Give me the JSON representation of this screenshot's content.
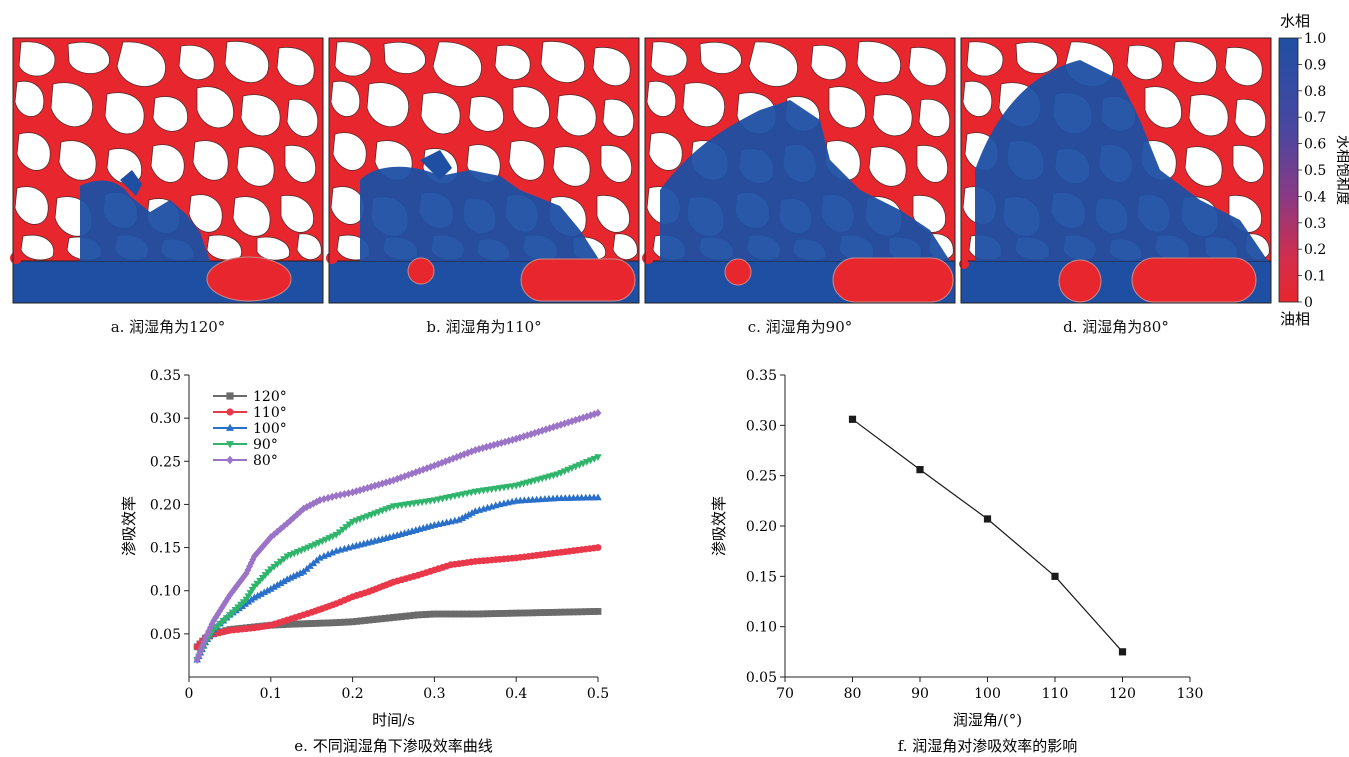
{
  "panels": [
    {
      "id": "a",
      "caption": "a. 润湿角为120°"
    },
    {
      "id": "b",
      "caption": "b. 润湿角为110°"
    },
    {
      "id": "c",
      "caption": "c. 润湿角为90°"
    },
    {
      "id": "d",
      "caption": "d. 润湿角为80°"
    }
  ],
  "colorbar": {
    "top_label": "水相",
    "bottom_label": "油相",
    "title": "水相饱和度",
    "ticks": [
      "1.0",
      "0.9",
      "0.8",
      "0.7",
      "0.6",
      "0.5",
      "0.4",
      "0.3",
      "0.2",
      "0.1",
      "0"
    ],
    "colors": {
      "water": "#1f4fa3",
      "oil": "#e8262e",
      "mid": "#7d3a8a"
    }
  },
  "chart_data": [
    {
      "type": "line",
      "caption": "e. 不同润湿角下渗吸效率曲线",
      "xlabel": "时间/s",
      "ylabel": "渗吸效率",
      "xlim": [
        0,
        0.5
      ],
      "ylim": [
        0,
        0.35
      ],
      "xticks": [
        "0",
        "0.1",
        "0.2",
        "0.3",
        "0.4",
        "0.5"
      ],
      "yticks": [
        "0.05",
        "0.10",
        "0.15",
        "0.20",
        "0.25",
        "0.30",
        "0.35"
      ],
      "legend_position": "top-left",
      "series": [
        {
          "name": "120°",
          "color": "#6b6b6b",
          "marker": "square",
          "x": [
            0.01,
            0.02,
            0.03,
            0.05,
            0.08,
            0.1,
            0.12,
            0.15,
            0.18,
            0.2,
            0.22,
            0.25,
            0.28,
            0.3,
            0.35,
            0.4,
            0.45,
            0.5
          ],
          "y": [
            0.035,
            0.045,
            0.05,
            0.055,
            0.058,
            0.06,
            0.061,
            0.062,
            0.063,
            0.064,
            0.066,
            0.069,
            0.072,
            0.073,
            0.073,
            0.074,
            0.075,
            0.076
          ]
        },
        {
          "name": "110°",
          "color": "#e8384a",
          "marker": "circle",
          "x": [
            0.01,
            0.02,
            0.03,
            0.05,
            0.08,
            0.1,
            0.12,
            0.15,
            0.18,
            0.2,
            0.22,
            0.25,
            0.28,
            0.3,
            0.32,
            0.35,
            0.4,
            0.45,
            0.5
          ],
          "y": [
            0.035,
            0.045,
            0.05,
            0.054,
            0.057,
            0.06,
            0.066,
            0.075,
            0.085,
            0.093,
            0.099,
            0.11,
            0.118,
            0.124,
            0.13,
            0.134,
            0.138,
            0.144,
            0.15
          ]
        },
        {
          "name": "100°",
          "color": "#2a6fc9",
          "marker": "triangle-up",
          "x": [
            0.01,
            0.02,
            0.03,
            0.05,
            0.08,
            0.1,
            0.12,
            0.14,
            0.16,
            0.18,
            0.2,
            0.25,
            0.3,
            0.33,
            0.35,
            0.38,
            0.4,
            0.45,
            0.5
          ],
          "y": [
            0.02,
            0.04,
            0.055,
            0.072,
            0.092,
            0.102,
            0.113,
            0.122,
            0.138,
            0.146,
            0.151,
            0.163,
            0.176,
            0.182,
            0.192,
            0.2,
            0.204,
            0.207,
            0.208
          ]
        },
        {
          "name": "90°",
          "color": "#2fb56b",
          "marker": "triangle-down",
          "x": [
            0.01,
            0.02,
            0.03,
            0.05,
            0.07,
            0.08,
            0.1,
            0.12,
            0.15,
            0.18,
            0.2,
            0.25,
            0.3,
            0.35,
            0.4,
            0.45,
            0.5
          ],
          "y": [
            0.02,
            0.04,
            0.055,
            0.072,
            0.09,
            0.105,
            0.125,
            0.14,
            0.152,
            0.165,
            0.18,
            0.198,
            0.205,
            0.215,
            0.222,
            0.235,
            0.255
          ]
        },
        {
          "name": "80°",
          "color": "#9b74c8",
          "marker": "diamond",
          "x": [
            0.01,
            0.02,
            0.03,
            0.05,
            0.07,
            0.08,
            0.1,
            0.12,
            0.14,
            0.16,
            0.18,
            0.2,
            0.25,
            0.3,
            0.35,
            0.4,
            0.45,
            0.5
          ],
          "y": [
            0.02,
            0.045,
            0.065,
            0.095,
            0.12,
            0.14,
            0.162,
            0.178,
            0.195,
            0.205,
            0.21,
            0.214,
            0.228,
            0.245,
            0.263,
            0.276,
            0.291,
            0.306
          ]
        }
      ]
    },
    {
      "type": "line",
      "caption": "f. 润湿角对渗吸效率的影响",
      "xlabel": "润湿角/(°)",
      "ylabel": "渗吸效率",
      "xlim": [
        70,
        130
      ],
      "ylim": [
        0.05,
        0.35
      ],
      "xticks": [
        "70",
        "80",
        "90",
        "100",
        "110",
        "120",
        "130"
      ],
      "yticks": [
        "0.05",
        "0.10",
        "0.15",
        "0.20",
        "0.25",
        "0.30",
        "0.35"
      ],
      "series": [
        {
          "color": "#1a1a1a",
          "marker": "square",
          "x": [
            80,
            90,
            100,
            110,
            120
          ],
          "y": [
            0.306,
            0.256,
            0.207,
            0.15,
            0.075
          ]
        }
      ]
    }
  ]
}
